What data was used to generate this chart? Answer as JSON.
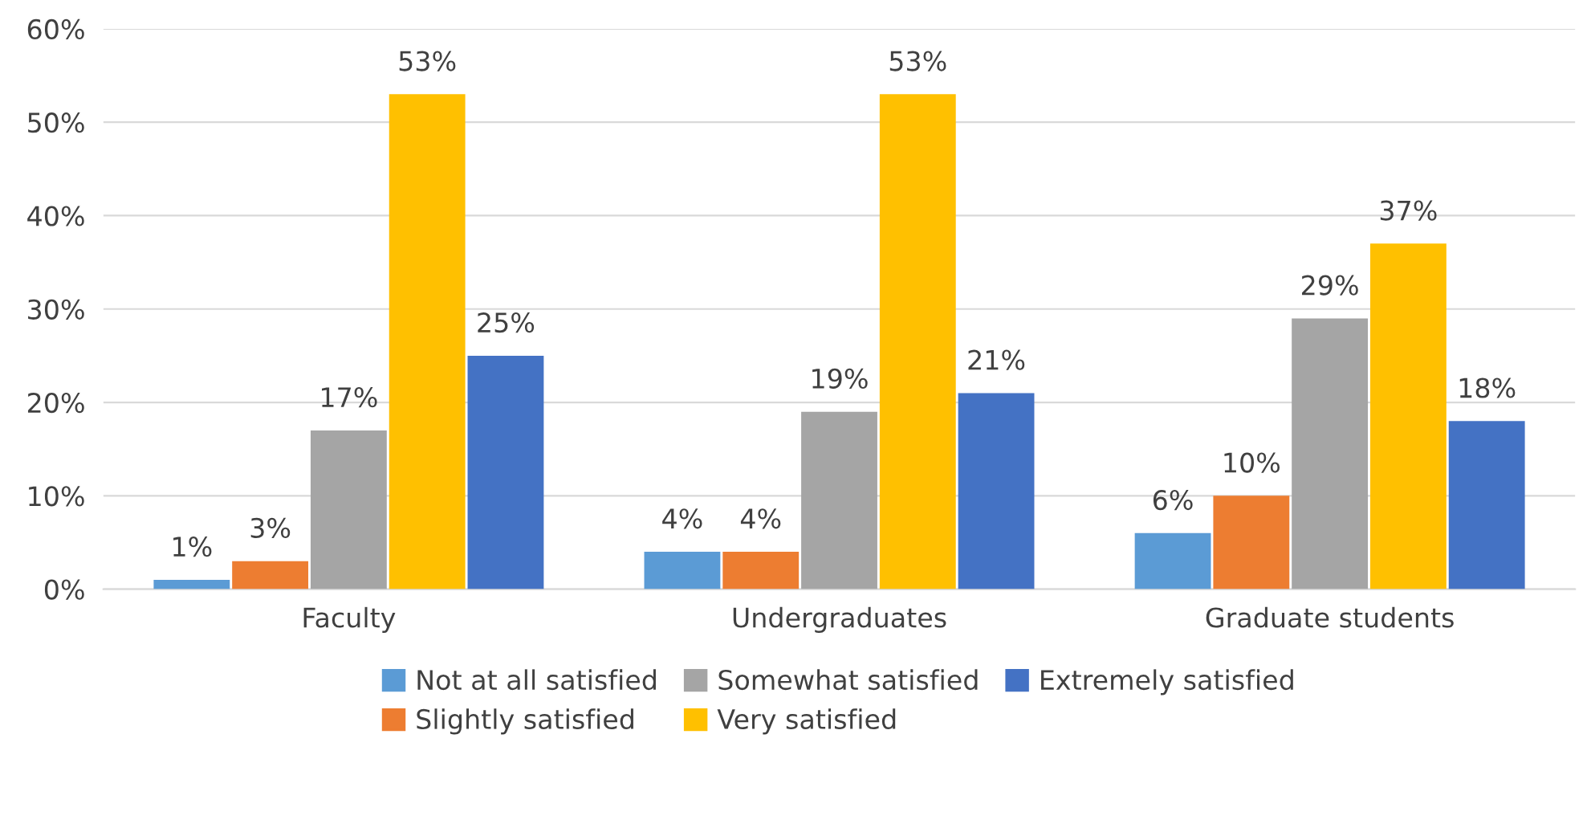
{
  "chart_data": {
    "type": "bar",
    "categories": [
      "Faculty",
      "Undergraduates",
      "Graduate students"
    ],
    "series": [
      {
        "name": "Not at all satisfied",
        "color": "#5b9bd5",
        "values": [
          1,
          4,
          6
        ],
        "value_labels": [
          "1%",
          "4%",
          "6%"
        ]
      },
      {
        "name": "Slightly satisfied",
        "color": "#ed7d31",
        "values": [
          3,
          4,
          10
        ],
        "value_labels": [
          "3%",
          "4%",
          "10%"
        ]
      },
      {
        "name": "Somewhat satisfied",
        "color": "#a5a5a5",
        "values": [
          17,
          19,
          29
        ],
        "value_labels": [
          "17%",
          "19%",
          "29%"
        ]
      },
      {
        "name": "Very satisfied",
        "color": "#ffc000",
        "values": [
          53,
          53,
          37
        ],
        "value_labels": [
          "53%",
          "53%",
          "37%"
        ]
      },
      {
        "name": "Extremely satisfied",
        "color": "#4472c4",
        "values": [
          25,
          21,
          18
        ],
        "value_labels": [
          "25%",
          "21%",
          "18%"
        ]
      }
    ],
    "ylim": [
      0,
      60
    ],
    "yticks": [
      {
        "value": 0,
        "label": "0%"
      },
      {
        "value": 10,
        "label": "10%"
      },
      {
        "value": 20,
        "label": "20%"
      },
      {
        "value": 30,
        "label": "30%"
      },
      {
        "value": 40,
        "label": "40%"
      },
      {
        "value": 50,
        "label": "50%"
      },
      {
        "value": 60,
        "label": "60%"
      }
    ],
    "grid": "y",
    "legend": "bottom"
  }
}
